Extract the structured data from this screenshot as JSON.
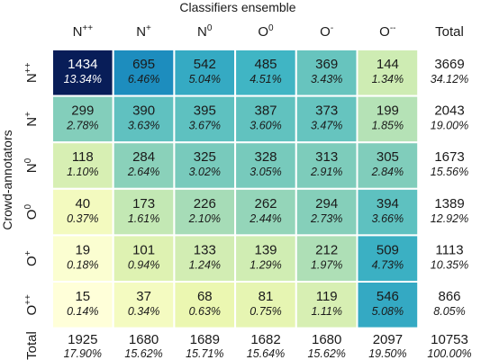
{
  "chart_data": {
    "type": "heatmap",
    "title": "",
    "xlabel": "Classifiers ensemble",
    "ylabel": "Crowd-annotators",
    "columns": [
      "N++",
      "N+",
      "N0",
      "O0",
      "O-",
      "O--"
    ],
    "rows": [
      "N++",
      "N+",
      "N0",
      "O0",
      "O+",
      "O++"
    ],
    "total_label": "Total",
    "values": [
      [
        1434,
        695,
        542,
        485,
        369,
        144
      ],
      [
        299,
        390,
        395,
        387,
        373,
        199
      ],
      [
        118,
        284,
        325,
        328,
        313,
        305
      ],
      [
        40,
        173,
        226,
        262,
        294,
        394
      ],
      [
        19,
        101,
        133,
        139,
        212,
        509
      ],
      [
        15,
        37,
        68,
        81,
        119,
        546
      ]
    ],
    "percents": [
      [
        "13.34%",
        "6.46%",
        "5.04%",
        "4.51%",
        "3.43%",
        "1.34%"
      ],
      [
        "2.78%",
        "3.63%",
        "3.67%",
        "3.60%",
        "3.47%",
        "1.85%"
      ],
      [
        "1.10%",
        "2.64%",
        "3.02%",
        "3.05%",
        "2.91%",
        "2.84%"
      ],
      [
        "0.37%",
        "1.61%",
        "2.10%",
        "2.44%",
        "2.73%",
        "3.66%"
      ],
      [
        "0.18%",
        "0.94%",
        "1.24%",
        "1.29%",
        "1.97%",
        "4.73%"
      ],
      [
        "0.14%",
        "0.34%",
        "0.63%",
        "0.75%",
        "1.11%",
        "5.08%"
      ]
    ],
    "row_totals": [
      3669,
      2043,
      1673,
      1389,
      1113,
      866
    ],
    "row_total_percents": [
      "34.12%",
      "19.00%",
      "15.56%",
      "12.92%",
      "10.35%",
      "8.05%"
    ],
    "col_totals": [
      1925,
      1680,
      1689,
      1682,
      1680,
      2097
    ],
    "col_total_percents": [
      "17.90%",
      "15.62%",
      "15.71%",
      "15.64%",
      "15.62%",
      "19.50%"
    ],
    "grand_total": 10753,
    "grand_total_percent": "100.00%",
    "colormap": "YlGnBu",
    "grid": false,
    "legend": "none"
  }
}
